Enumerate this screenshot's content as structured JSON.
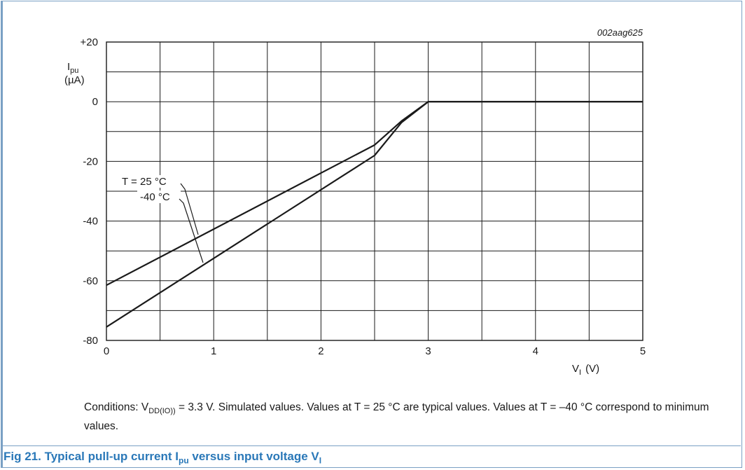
{
  "chart_data": {
    "type": "line",
    "id_label": "002aag625",
    "ylabel_main": "I",
    "ylabel_sub": "pu",
    "ylabel_unit": "(µA)",
    "xlabel_main": "V",
    "xlabel_sub": "I",
    "xlabel_unit": "(V)",
    "xlim": [
      0,
      5
    ],
    "ylim": [
      -80,
      20
    ],
    "x_ticks": [
      0,
      1,
      2,
      3,
      4,
      5
    ],
    "x_tick_labels": [
      "0",
      "1",
      "2",
      "3",
      "4",
      "5"
    ],
    "y_ticks": [
      20,
      0,
      -20,
      -40,
      -60,
      -80
    ],
    "y_tick_labels": [
      "+20",
      "0",
      "-20",
      "-40",
      "-60",
      "-80"
    ],
    "grid": true,
    "series": [
      {
        "name": "T = 25 °C",
        "x": [
          0,
          2.5,
          2.75,
          3.0,
          5.0
        ],
        "y": [
          -61.5,
          -14.5,
          -6.5,
          0,
          0
        ]
      },
      {
        "name": "-40 °C",
        "x": [
          0,
          2.5,
          2.75,
          3.0,
          5.0
        ],
        "y": [
          -75.5,
          -18,
          -7,
          0,
          0
        ]
      }
    ]
  },
  "conditions": {
    "p1": "Conditions: V",
    "p1_sub": "DD(IO))",
    "p2": " = 3.3 V. Simulated values. Values at T = 25 °C are typical values. Values at T = –40 °C correspond to minimum values."
  },
  "caption": {
    "p1": "Fig 21.   Typical pull-up current I",
    "p1_sub": "pu",
    "p2": " versus input voltage V",
    "p2_sub": "I"
  }
}
